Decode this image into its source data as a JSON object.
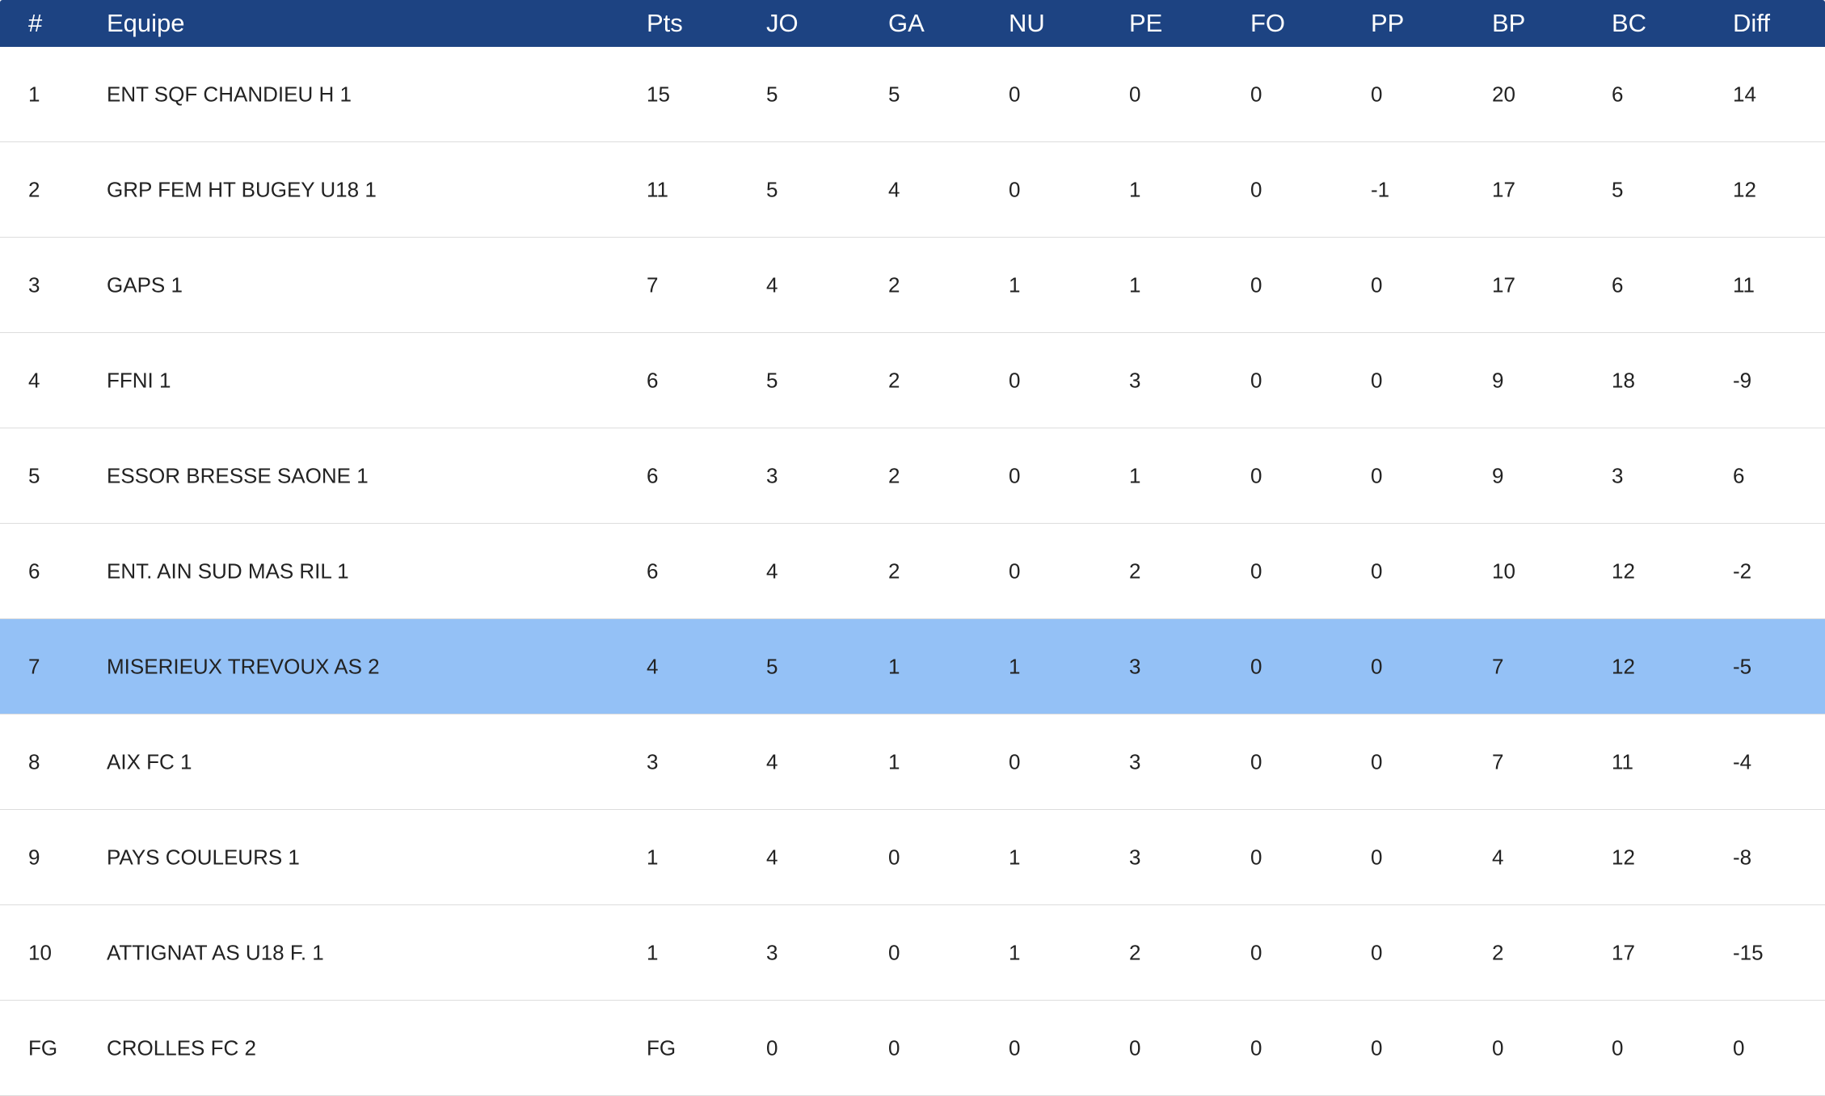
{
  "table": {
    "columns": [
      "#",
      "Equipe",
      "Pts",
      "JO",
      "GA",
      "NU",
      "PE",
      "FO",
      "PP",
      "BP",
      "BC",
      "Diff"
    ],
    "highlighted_row": 6,
    "rows": [
      [
        1,
        "ENT SQF CHANDIEU H 1",
        15,
        5,
        5,
        0,
        0,
        0,
        0,
        20,
        6,
        14
      ],
      [
        2,
        "GRP FEM HT BUGEY U18 1",
        11,
        5,
        4,
        0,
        1,
        0,
        -1,
        17,
        5,
        12
      ],
      [
        3,
        "GAPS 1",
        7,
        4,
        2,
        1,
        1,
        0,
        0,
        17,
        6,
        11
      ],
      [
        4,
        "FFNI 1",
        6,
        5,
        2,
        0,
        3,
        0,
        0,
        9,
        18,
        -9
      ],
      [
        5,
        "ESSOR BRESSE SAONE 1",
        6,
        3,
        2,
        0,
        1,
        0,
        0,
        9,
        3,
        6
      ],
      [
        6,
        "ENT. AIN SUD MAS RIL 1",
        6,
        4,
        2,
        0,
        2,
        0,
        0,
        10,
        12,
        -2
      ],
      [
        7,
        "MISERIEUX TREVOUX AS 2",
        4,
        5,
        1,
        1,
        3,
        0,
        0,
        7,
        12,
        -5
      ],
      [
        8,
        "AIX FC 1",
        3,
        4,
        1,
        0,
        3,
        0,
        0,
        7,
        11,
        -4
      ],
      [
        9,
        "PAYS COULEURS 1",
        1,
        4,
        0,
        1,
        3,
        0,
        0,
        4,
        12,
        -8
      ],
      [
        10,
        "ATTIGNAT AS U18 F. 1",
        1,
        3,
        0,
        1,
        2,
        0,
        0,
        2,
        17,
        -15
      ],
      [
        "FG",
        "CROLLES FC 2",
        "FG",
        0,
        0,
        0,
        0,
        0,
        0,
        0,
        0,
        0
      ]
    ]
  }
}
